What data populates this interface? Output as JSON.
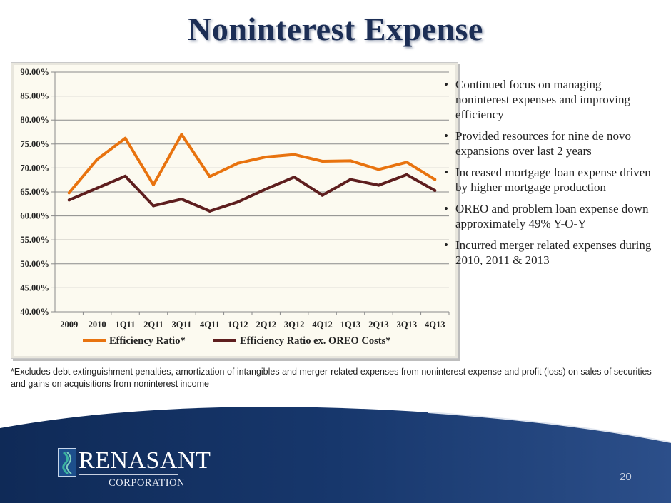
{
  "title": "Noninterest Expense",
  "chart_data": {
    "type": "line",
    "categories": [
      "2009",
      "2010",
      "1Q11",
      "2Q11",
      "3Q11",
      "4Q11",
      "1Q12",
      "2Q12",
      "3Q12",
      "4Q12",
      "1Q13",
      "2Q13",
      "3Q13",
      "4Q13"
    ],
    "series": [
      {
        "name": "Efficiency Ratio*",
        "color": "#e8730f",
        "values": [
          64.8,
          71.8,
          76.2,
          66.5,
          77.0,
          68.2,
          71.0,
          72.3,
          72.8,
          71.4,
          71.5,
          69.7,
          71.2,
          67.6
        ]
      },
      {
        "name": "Efficiency Ratio ex. OREO Costs*",
        "color": "#5e1e1e",
        "values": [
          63.3,
          65.8,
          68.3,
          62.1,
          63.5,
          61.0,
          62.9,
          65.6,
          68.1,
          64.3,
          67.6,
          66.4,
          68.6,
          65.3
        ]
      }
    ],
    "ylim": [
      40,
      90
    ],
    "yticks": [
      "40.00%",
      "45.00%",
      "50.00%",
      "55.00%",
      "60.00%",
      "65.00%",
      "70.00%",
      "75.00%",
      "80.00%",
      "85.00%",
      "90.00%"
    ],
    "grid": true,
    "legend": "bottom"
  },
  "bullets": [
    "Continued focus on managing noninterest expenses and improving efficiency",
    "Provided resources for nine de novo expansions over last 2 years",
    "Increased mortgage loan expense driven by higher mortgage production",
    "OREO and problem loan expense down approximately 49% Y-O-Y",
    "Incurred merger related expenses during 2010, 2011 & 2013"
  ],
  "footnote": "*Excludes debt extinguishment penalties, amortization of intangibles and merger-related expenses from noninterest expense and profit (loss) on sales of securities and gains on acquisitions from noninterest income",
  "logo": {
    "name": "RENASANT",
    "sub": "CORPORATION"
  },
  "page_number": "20"
}
